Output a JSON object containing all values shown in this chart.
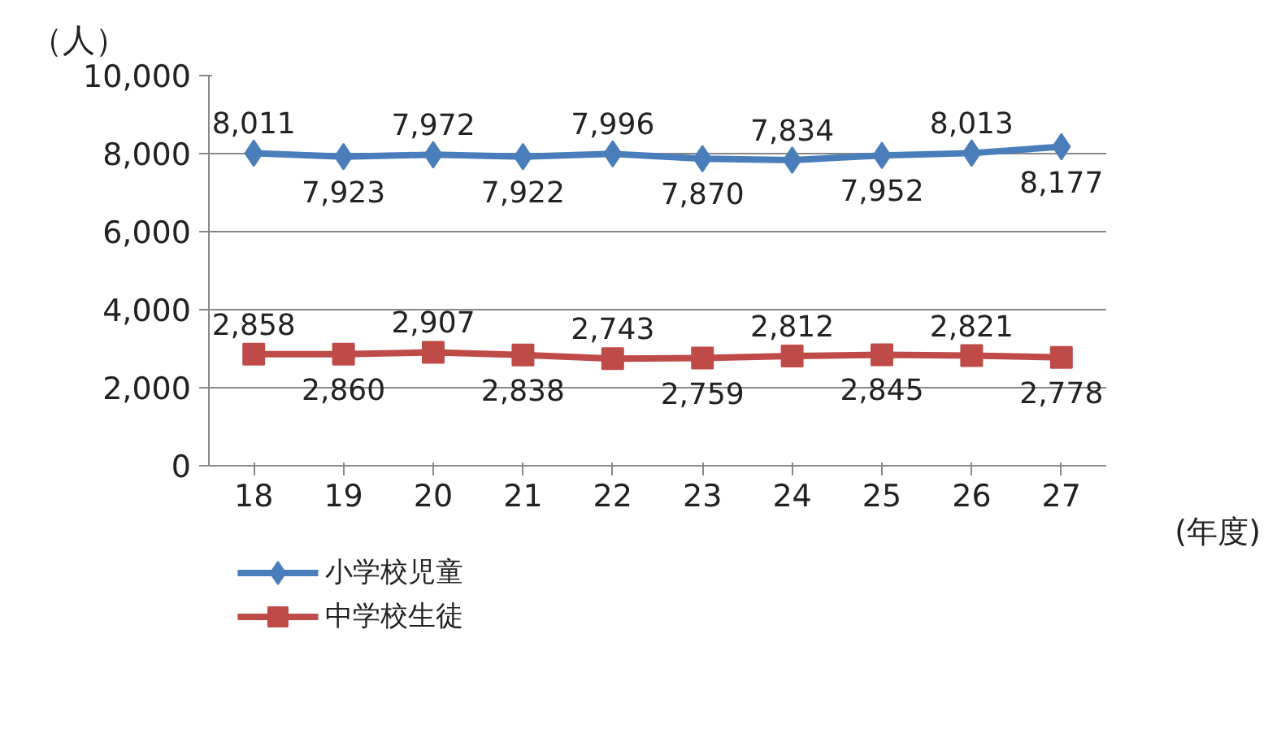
{
  "chart_data": {
    "type": "line",
    "xlabel": "(年度)",
    "ylabel": "（人）",
    "categories": [
      "18",
      "19",
      "20",
      "21",
      "22",
      "23",
      "24",
      "25",
      "26",
      "27"
    ],
    "series": [
      {
        "name": "小学校児童",
        "color": "#4a7ebb",
        "marker": "diamond",
        "values": [
          8011,
          7923,
          7972,
          7922,
          7996,
          7870,
          7834,
          7952,
          8013,
          8177
        ],
        "value_labels": [
          "8,011",
          "7,923",
          "7,972",
          "7,922",
          "7,996",
          "7,870",
          "7,834",
          "7,952",
          "8,013",
          "8,177"
        ]
      },
      {
        "name": "中学校生徒",
        "color": "#be4b48",
        "marker": "square",
        "values": [
          2858,
          2860,
          2907,
          2838,
          2743,
          2759,
          2812,
          2845,
          2821,
          2778
        ],
        "value_labels": [
          "2,858",
          "2,860",
          "2,907",
          "2,838",
          "2,743",
          "2,759",
          "2,812",
          "2,845",
          "2,821",
          "2,778"
        ]
      }
    ],
    "ylim": [
      0,
      10000
    ],
    "yticks": [
      {
        "value": 0,
        "label": "0"
      },
      {
        "value": 2000,
        "label": "2,000"
      },
      {
        "value": 4000,
        "label": "4,000"
      },
      {
        "value": 6000,
        "label": "6,000"
      },
      {
        "value": 8000,
        "label": "8,000"
      },
      {
        "value": 10000,
        "label": "10,000"
      }
    ],
    "grid": "y",
    "legend": "bottom left",
    "line_style": "solid"
  }
}
